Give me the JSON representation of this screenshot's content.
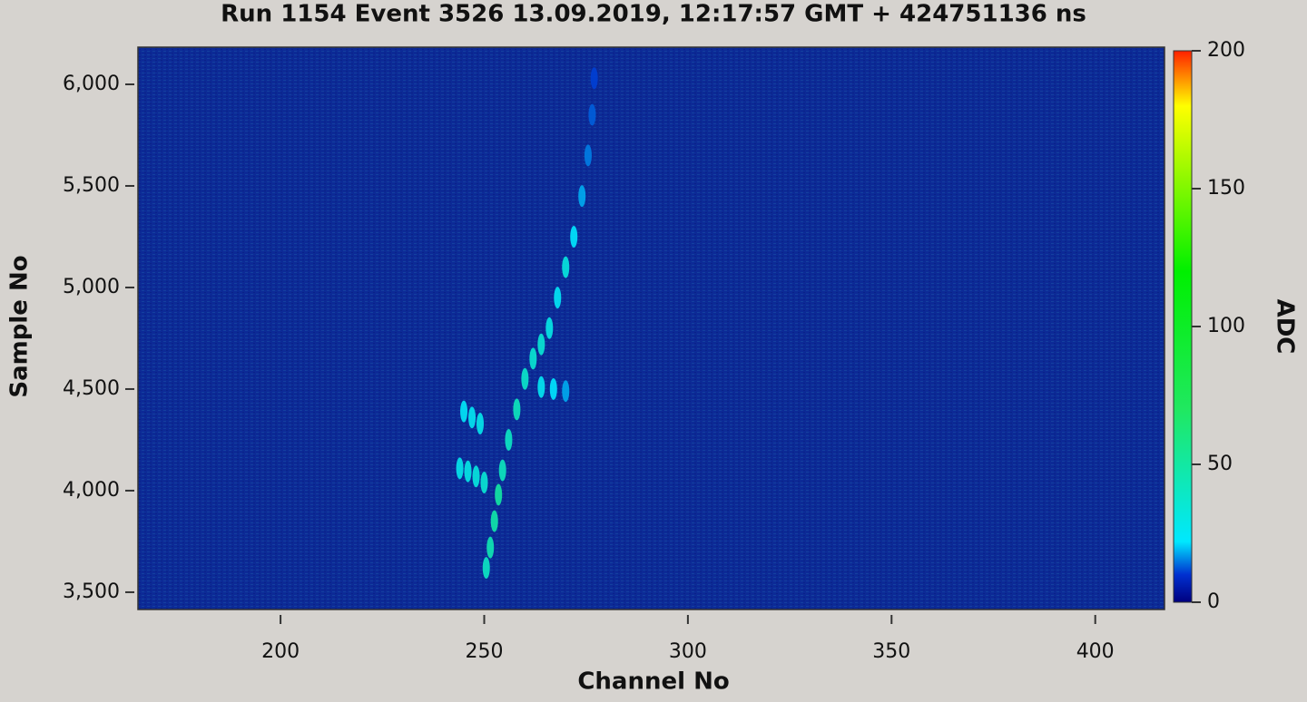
{
  "chart_data": {
    "type": "heatmap",
    "title": "Run 1154 Event 3526 13.09.2019, 12:17:57 GMT + 424751136 ns",
    "x_label": "Channel No",
    "y_label": "Sample No",
    "colorbar_label": "ADC",
    "xlim": [
      165,
      417
    ],
    "xticks": [
      200,
      250,
      300,
      350,
      400
    ],
    "ylim": [
      3415,
      6183
    ],
    "yticks": [
      {
        "value": 3500,
        "label": "3,500"
      },
      {
        "value": 4000,
        "label": "4,000"
      },
      {
        "value": 4500,
        "label": "4,500"
      },
      {
        "value": 5000,
        "label": "5,000"
      },
      {
        "value": 5500,
        "label": "5,500"
      },
      {
        "value": 6000,
        "label": "6,000"
      }
    ],
    "clim": [
      0,
      200
    ],
    "cticks": [
      0,
      50,
      100,
      150,
      200
    ],
    "track": {
      "x": [
        250.5,
        251.5,
        252.5,
        253.5,
        254.5,
        256,
        258,
        260,
        262,
        264,
        266,
        268,
        270,
        272,
        274,
        275.5,
        276.5,
        277,
        244,
        246,
        248,
        250,
        245,
        247,
        249,
        264,
        267,
        270
      ],
      "y": [
        3620,
        3720,
        3850,
        3980,
        4100,
        4250,
        4400,
        4550,
        4650,
        4720,
        4800,
        4950,
        5100,
        5250,
        5450,
        5650,
        5850,
        6030,
        4110,
        4095,
        4070,
        4040,
        4390,
        4360,
        4330,
        4510,
        4500,
        4490
      ],
      "values": [
        40,
        45,
        48,
        50,
        42,
        40,
        42,
        38,
        36,
        35,
        30,
        25,
        32,
        22,
        18,
        15,
        13,
        11,
        28,
        30,
        32,
        35,
        24,
        26,
        28,
        26,
        22,
        18
      ]
    }
  }
}
